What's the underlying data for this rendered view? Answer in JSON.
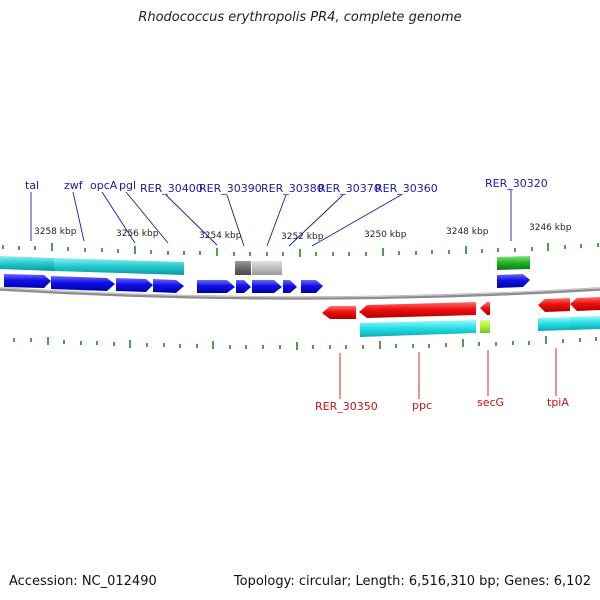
{
  "title": "Rhodococcus erythropolis PR4, complete genome",
  "footer": {
    "accession": "Accession: NC_012490",
    "topology": "Topology: circular; Length: 6,516,310 bp; Genes: 6,102"
  },
  "scale": [
    {
      "label": "3258 kbp"
    },
    {
      "label": "3256 kbp"
    },
    {
      "label": "3254 kbp"
    },
    {
      "label": "3252 kbp"
    },
    {
      "label": "3250 kbp"
    },
    {
      "label": "3248 kbp"
    },
    {
      "label": "3246 kbp"
    }
  ],
  "top_gene_labels": [
    "tal",
    "zwf",
    "opcA",
    "pgl",
    "RER_30400",
    "RER_30390",
    "RER_30380",
    "RER_30370",
    "RER_30360",
    "RER_30320"
  ],
  "bottom_gene_labels": [
    "RER_30350",
    "ppc",
    "secG",
    "tpiA"
  ],
  "colors": {
    "forward_cds": "#1010e8",
    "reverse_cds": "#ee1010",
    "forward_gene": "#22c8cc",
    "reverse_gene": "#22dde4",
    "green_feature": "#22b022",
    "gray_feature": "#8a8a8a",
    "lime_feature": "#aaee33",
    "backbone": "#888888",
    "tick": "#1f8a1f"
  }
}
